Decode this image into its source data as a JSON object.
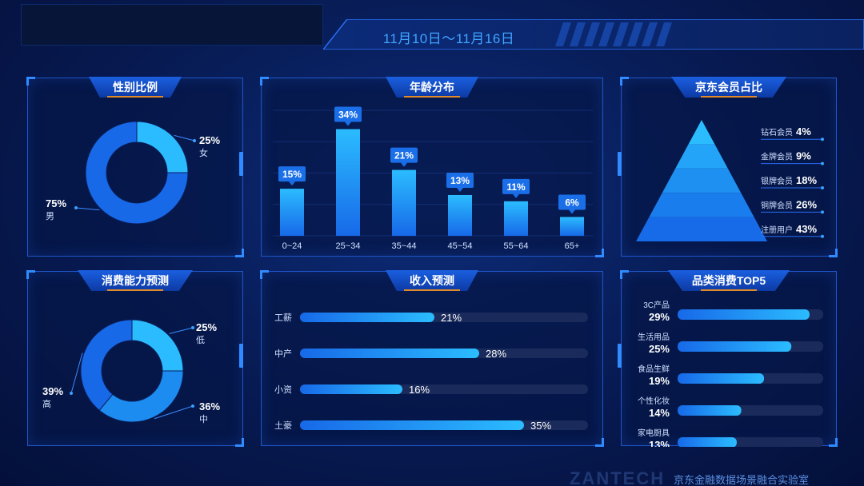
{
  "header": {
    "date_range": "11月10日～11月16日"
  },
  "panels": {
    "gender": {
      "title": "性别比例"
    },
    "age": {
      "title": "年龄分布"
    },
    "membership": {
      "title": "京东会员占比"
    },
    "spending_power": {
      "title": "消费能力预测"
    },
    "income": {
      "title": "收入预测"
    },
    "category": {
      "title": "品类消费TOP5"
    }
  },
  "colors": {
    "accent_light": "#2bbcff",
    "accent_dark": "#1769e8",
    "label_bg": "#1a6fe8",
    "track": "#1a2a5a"
  },
  "footer": {
    "brand": "ZANTECH",
    "lab": "京东金融数据场景融合实验室"
  },
  "chart_data": [
    {
      "id": "gender",
      "type": "pie",
      "donut": true,
      "slices": [
        {
          "label": "女",
          "value": 25,
          "display": "25%"
        },
        {
          "label": "男",
          "value": 75,
          "display": "75%"
        }
      ]
    },
    {
      "id": "age",
      "type": "bar",
      "categories": [
        "0~24",
        "25~34",
        "35~44",
        "45~54",
        "55~64",
        "65+"
      ],
      "values": [
        15,
        34,
        21,
        13,
        11,
        6
      ],
      "value_labels": [
        "15%",
        "34%",
        "21%",
        "13%",
        "11%",
        "6%"
      ],
      "ylim": [
        0,
        40
      ]
    },
    {
      "id": "membership",
      "type": "pyramid",
      "levels": [
        {
          "label": "钻石会员",
          "value": 4,
          "display": "4%"
        },
        {
          "label": "金牌会员",
          "value": 9,
          "display": "9%"
        },
        {
          "label": "银牌会员",
          "value": 18,
          "display": "18%"
        },
        {
          "label": "铜牌会员",
          "value": 26,
          "display": "26%"
        },
        {
          "label": "注册用户",
          "value": 43,
          "display": "43%"
        }
      ]
    },
    {
      "id": "spending_power",
      "type": "pie",
      "donut": true,
      "slices": [
        {
          "label": "低",
          "value": 25,
          "display": "25%"
        },
        {
          "label": "中",
          "value": 36,
          "display": "36%"
        },
        {
          "label": "高",
          "value": 39,
          "display": "39%"
        }
      ]
    },
    {
      "id": "income",
      "type": "bar",
      "orientation": "horizontal",
      "categories": [
        "工薪",
        "中产",
        "小资",
        "土豪"
      ],
      "values": [
        21,
        28,
        16,
        35
      ],
      "value_labels": [
        "21%",
        "28%",
        "16%",
        "35%"
      ],
      "xlim": [
        0,
        45
      ]
    },
    {
      "id": "category",
      "type": "bar",
      "orientation": "horizontal",
      "categories": [
        "3C产品",
        "生活用品",
        "食品生鲜",
        "个性化妆",
        "家电厨具"
      ],
      "values": [
        29,
        25,
        19,
        14,
        13
      ],
      "value_labels": [
        "29%",
        "25%",
        "19%",
        "14%",
        "13%"
      ],
      "xlim": [
        0,
        32
      ]
    }
  ]
}
